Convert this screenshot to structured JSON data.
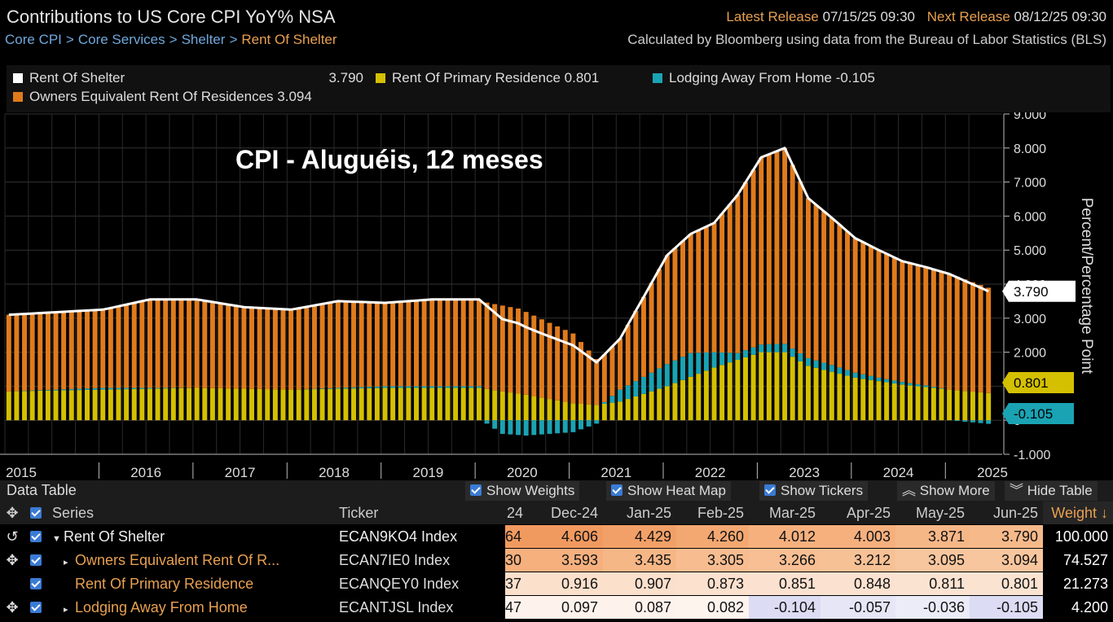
{
  "header": {
    "title": "Contributions to US Core CPI YoY% NSA",
    "breadcrumbs": [
      "Core CPI",
      "Core Services",
      "Shelter",
      "Rent Of Shelter"
    ],
    "latest_release_label": "Latest Release",
    "latest_release_value": "07/15/25 09:30",
    "next_release_label": "Next Release",
    "next_release_value": "08/12/25 09:30",
    "source_note": "Calculated by Bloomberg using data from the Bureau of Labor Statistics (BLS)"
  },
  "legend": [
    {
      "label": "Rent Of Shelter",
      "value": "3.790",
      "color": "#ffffff"
    },
    {
      "label": "Rent Of Primary Residence",
      "value": "0.801",
      "color": "#d4c000"
    },
    {
      "label": "Lodging Away From Home",
      "value": "-0.105",
      "color": "#1aa3b3"
    },
    {
      "label": "Owners Equivalent Rent Of Residences",
      "value": "3.094",
      "color": "#e07b1c"
    }
  ],
  "annotation": "CPI - Aluguéis, 12 meses",
  "chart_data": {
    "type": "bar",
    "stacked": true,
    "x_start": "2015-01",
    "x_end": "2025-06",
    "ylabel": "Percent/Percentage Point",
    "ylim": [
      -1,
      9
    ],
    "yticks": [
      "9.000",
      "8.000",
      "7.000",
      "6.000",
      "5.000",
      "4.000",
      "3.000",
      "2.000",
      "1.000",
      "0",
      "-1.000"
    ],
    "xticks": [
      "2015",
      "2016",
      "2017",
      "2018",
      "2019",
      "2020",
      "2021",
      "2022",
      "2023",
      "2024",
      "2025"
    ],
    "grid": true,
    "end_labels": [
      {
        "value": "3.790",
        "color": "#ffffff",
        "text_color": "#000000"
      },
      {
        "value": "0.801",
        "color": "#d4c000",
        "text_color": "#000000"
      },
      {
        "value": "-0.105",
        "color": "#1aa3b3",
        "text_color": "#000000"
      }
    ],
    "series": [
      {
        "name": "Owners Equivalent Rent Of Residences",
        "color": "#e07b1c",
        "kind": "bar",
        "anchors": [
          [
            "2015-01",
            2.25
          ],
          [
            "2016-01",
            2.3
          ],
          [
            "2016-07",
            2.6
          ],
          [
            "2017-01",
            2.6
          ],
          [
            "2017-07",
            2.4
          ],
          [
            "2018-01",
            2.35
          ],
          [
            "2018-07",
            2.55
          ],
          [
            "2019-01",
            2.45
          ],
          [
            "2019-07",
            2.55
          ],
          [
            "2020-01",
            2.55
          ],
          [
            "2020-06",
            2.5
          ],
          [
            "2020-09",
            2.3
          ],
          [
            "2021-01",
            2.05
          ],
          [
            "2021-04",
            1.35
          ],
          [
            "2021-07",
            1.5
          ],
          [
            "2022-01",
            3.2
          ],
          [
            "2022-07",
            3.8
          ],
          [
            "2023-01",
            5.5
          ],
          [
            "2023-04",
            5.75
          ],
          [
            "2023-07",
            4.7
          ],
          [
            "2024-01",
            3.95
          ],
          [
            "2024-07",
            3.55
          ],
          [
            "2025-01",
            3.4
          ],
          [
            "2025-06",
            3.094
          ]
        ]
      },
      {
        "name": "Rent Of Primary Residence",
        "color": "#d4c000",
        "kind": "bar",
        "anchors": [
          [
            "2015-01",
            0.85
          ],
          [
            "2016-01",
            0.9
          ],
          [
            "2017-01",
            0.95
          ],
          [
            "2018-01",
            0.9
          ],
          [
            "2019-01",
            0.95
          ],
          [
            "2020-01",
            0.95
          ],
          [
            "2020-07",
            0.75
          ],
          [
            "2021-01",
            0.5
          ],
          [
            "2021-04",
            0.45
          ],
          [
            "2021-07",
            0.55
          ],
          [
            "2022-01",
            1.0
          ],
          [
            "2022-07",
            1.55
          ],
          [
            "2023-01",
            2.0
          ],
          [
            "2023-04",
            2.0
          ],
          [
            "2023-07",
            1.6
          ],
          [
            "2024-01",
            1.25
          ],
          [
            "2024-07",
            1.05
          ],
          [
            "2025-01",
            0.9
          ],
          [
            "2025-06",
            0.801
          ]
        ]
      },
      {
        "name": "Lodging Away From Home",
        "color": "#1aa3b3",
        "kind": "bar",
        "anchors": [
          [
            "2015-01",
            0.0
          ],
          [
            "2016-01",
            0.05
          ],
          [
            "2017-01",
            0.0
          ],
          [
            "2018-01",
            0.0
          ],
          [
            "2019-01",
            0.05
          ],
          [
            "2020-01",
            0.05
          ],
          [
            "2020-04",
            -0.4
          ],
          [
            "2020-07",
            -0.45
          ],
          [
            "2021-01",
            -0.35
          ],
          [
            "2021-04",
            -0.1
          ],
          [
            "2021-07",
            0.35
          ],
          [
            "2022-01",
            0.65
          ],
          [
            "2022-04",
            0.7
          ],
          [
            "2022-10",
            0.2
          ],
          [
            "2023-04",
            0.25
          ],
          [
            "2023-10",
            0.2
          ],
          [
            "2024-04",
            0.1
          ],
          [
            "2024-10",
            0.05
          ],
          [
            "2025-01",
            0.0
          ],
          [
            "2025-06",
            -0.105
          ]
        ]
      },
      {
        "name": "Rent Of Shelter",
        "color": "#ffffff",
        "kind": "line",
        "note": "sum of components"
      }
    ]
  },
  "data_table": {
    "title": "Data Table",
    "buttons": [
      "Show Weights",
      "Show Heat Map",
      "Show Tickers",
      "Show More",
      "Hide Table"
    ],
    "columns": {
      "series": "Series",
      "ticker": "Ticker",
      "partial": "24",
      "weight": "Weight ↓"
    },
    "months": [
      "Dec-24",
      "Jan-25",
      "Feb-25",
      "Mar-25",
      "Apr-25",
      "May-25",
      "Jun-25"
    ],
    "rows": [
      {
        "series": "Rent Of Shelter",
        "ticker": "ECAN9KO4 Index",
        "partial": "64",
        "values": [
          "4.606",
          "4.429",
          "4.260",
          "4.012",
          "4.003",
          "3.871",
          "3.790"
        ],
        "weight": "100.000",
        "colors": [
          "#f19a60",
          "#f2a068",
          "#f3a872",
          "#f5b07e",
          "#f5b07e",
          "#f6b787",
          "#f6b98a"
        ]
      },
      {
        "series": "Owners Equivalent Rent Of R...",
        "ticker": "ECAN7IE0 Index",
        "partial": "30",
        "values": [
          "3.593",
          "3.435",
          "3.305",
          "3.266",
          "3.212",
          "3.095",
          "3.094"
        ],
        "weight": "74.527",
        "colors": [
          "#f5b07e",
          "#f6b787",
          "#f7bd90",
          "#f7bf93",
          "#f7c196",
          "#f8c69e",
          "#f8c69e"
        ]
      },
      {
        "series": "Rent Of Primary Residence",
        "ticker": "ECANQEY0 Index",
        "partial": "37",
        "values": [
          "0.916",
          "0.907",
          "0.873",
          "0.851",
          "0.848",
          "0.811",
          "0.801"
        ],
        "weight": "21.273",
        "colors": [
          "#fbe0cc",
          "#fbe0cc",
          "#fbe1ce",
          "#fbe2d0",
          "#fbe2d0",
          "#fbe3d2",
          "#fbe3d2"
        ]
      },
      {
        "series": "Lodging Away From Home",
        "ticker": "ECANTJSL Index",
        "partial": "47",
        "values": [
          "0.097",
          "0.087",
          "0.082",
          "-0.104",
          "-0.057",
          "-0.036",
          "-0.105"
        ],
        "weight": "4.200",
        "colors": [
          "#fdf3ec",
          "#fdf3ec",
          "#fdf4ee",
          "#dcdcf4",
          "#e6e6f6",
          "#ececf8",
          "#dcdcf4"
        ]
      }
    ]
  }
}
